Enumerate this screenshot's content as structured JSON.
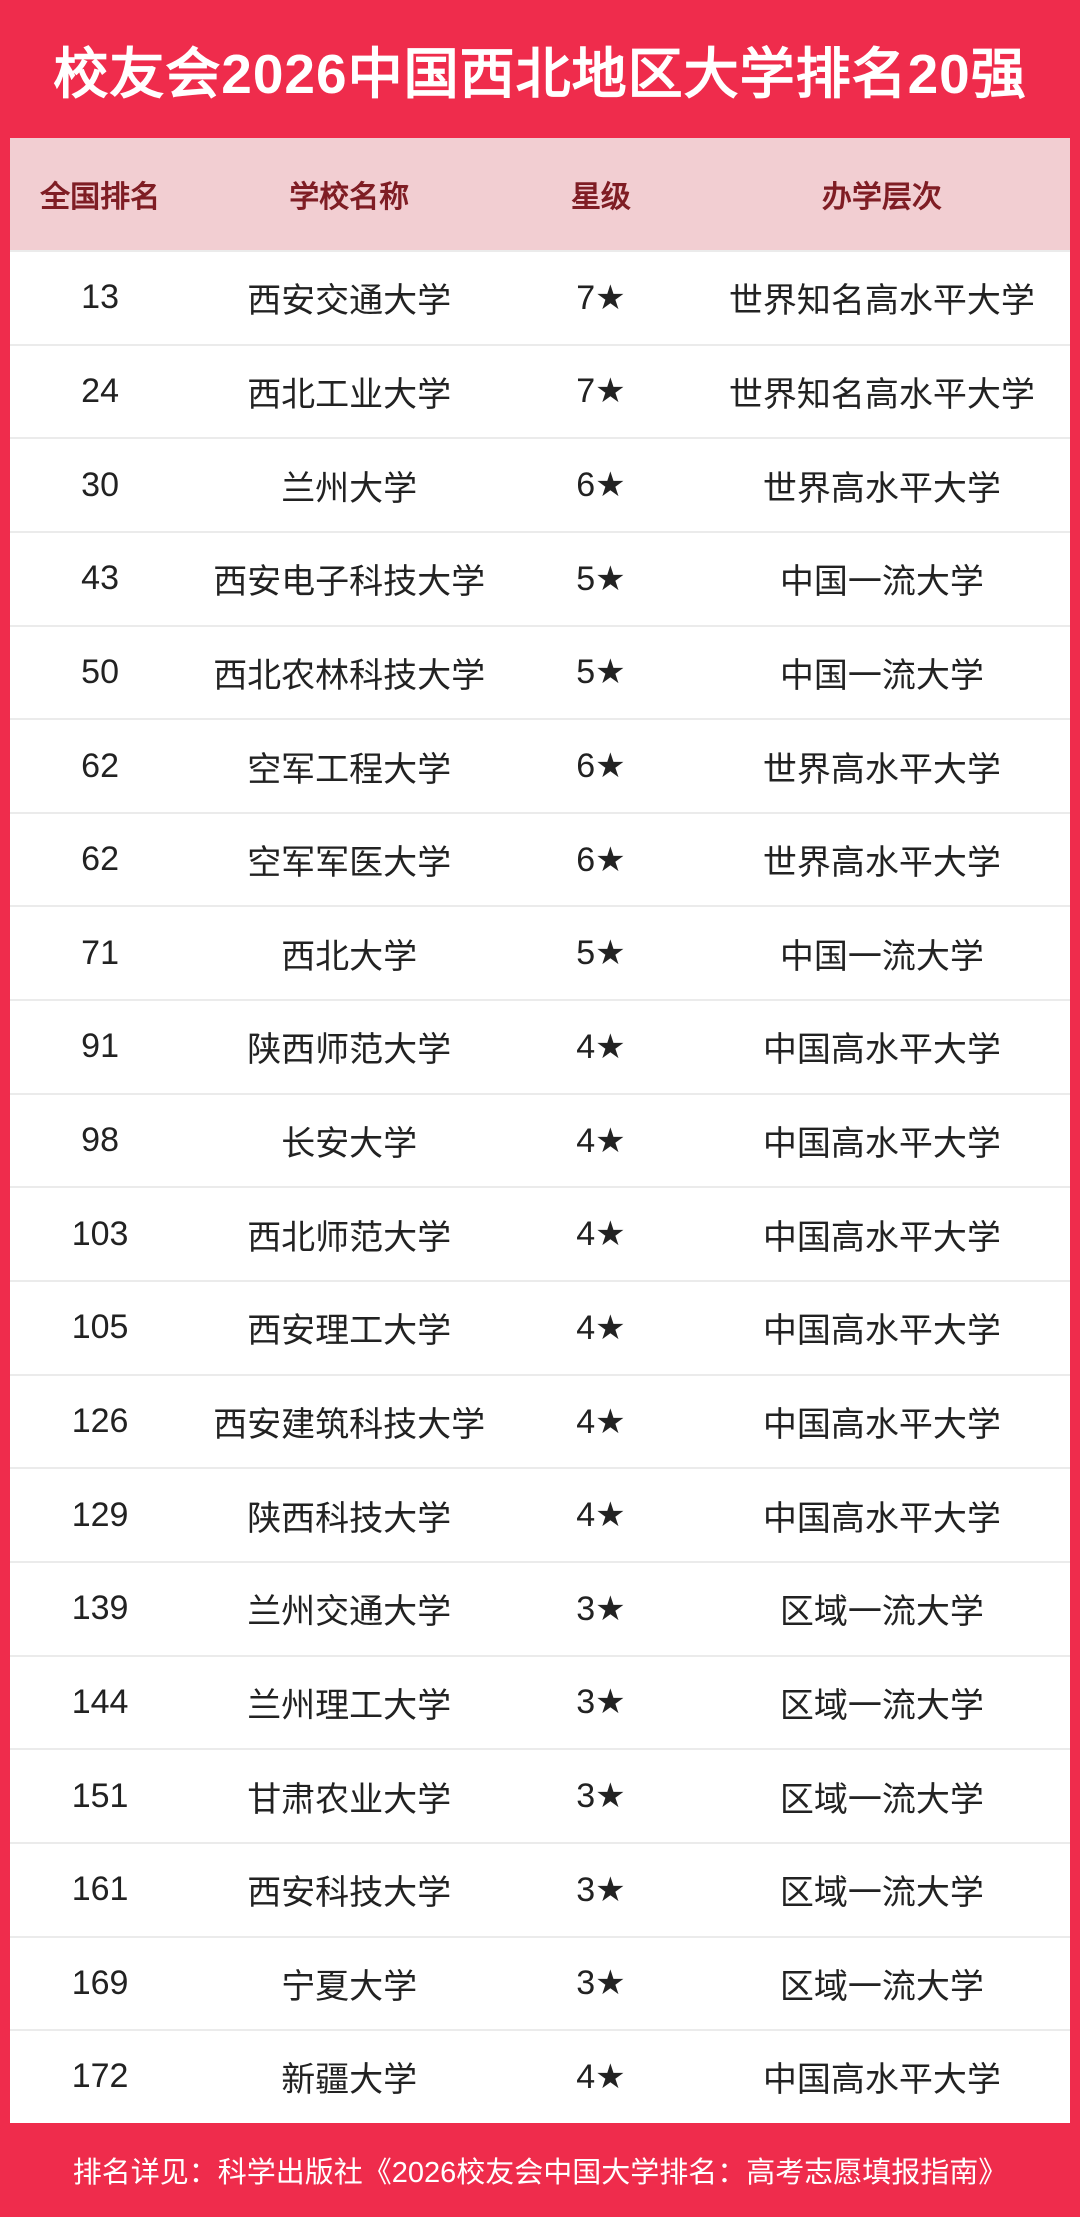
{
  "title": "校友会2026中国西北地区大学排名20强",
  "chart_data": {
    "type": "table",
    "title": "校友会2026中国西北地区大学排名20强",
    "columns": [
      "全国排名",
      "学校名称",
      "星级",
      "办学层次"
    ],
    "rows": [
      [
        "13",
        "西安交通大学",
        "7★",
        "世界知名高水平大学"
      ],
      [
        "24",
        "西北工业大学",
        "7★",
        "世界知名高水平大学"
      ],
      [
        "30",
        "兰州大学",
        "6★",
        "世界高水平大学"
      ],
      [
        "43",
        "西安电子科技大学",
        "5★",
        "中国一流大学"
      ],
      [
        "50",
        "西北农林科技大学",
        "5★",
        "中国一流大学"
      ],
      [
        "62",
        "空军工程大学",
        "6★",
        "世界高水平大学"
      ],
      [
        "62",
        "空军军医大学",
        "6★",
        "世界高水平大学"
      ],
      [
        "71",
        "西北大学",
        "5★",
        "中国一流大学"
      ],
      [
        "91",
        "陕西师范大学",
        "4★",
        "中国高水平大学"
      ],
      [
        "98",
        "长安大学",
        "4★",
        "中国高水平大学"
      ],
      [
        "103",
        "西北师范大学",
        "4★",
        "中国高水平大学"
      ],
      [
        "105",
        "西安理工大学",
        "4★",
        "中国高水平大学"
      ],
      [
        "126",
        "西安建筑科技大学",
        "4★",
        "中国高水平大学"
      ],
      [
        "129",
        "陕西科技大学",
        "4★",
        "中国高水平大学"
      ],
      [
        "139",
        "兰州交通大学",
        "3★",
        "区域一流大学"
      ],
      [
        "144",
        "兰州理工大学",
        "3★",
        "区域一流大学"
      ],
      [
        "151",
        "甘肃农业大学",
        "3★",
        "区域一流大学"
      ],
      [
        "161",
        "西安科技大学",
        "3★",
        "区域一流大学"
      ],
      [
        "169",
        "宁夏大学",
        "3★",
        "区域一流大学"
      ],
      [
        "172",
        "新疆大学",
        "4★",
        "中国高水平大学"
      ]
    ],
    "footnote": "排名详见：科学出版社《2026校友会中国大学排名：高考志愿填报指南》"
  },
  "colors": {
    "primary_red": "#EF2C4C",
    "header_pink": "#F2CED2",
    "header_text": "#7F1D24",
    "body_text": "#222222",
    "divider": "#EBEBEB",
    "title_text": "#FFFFFF"
  }
}
